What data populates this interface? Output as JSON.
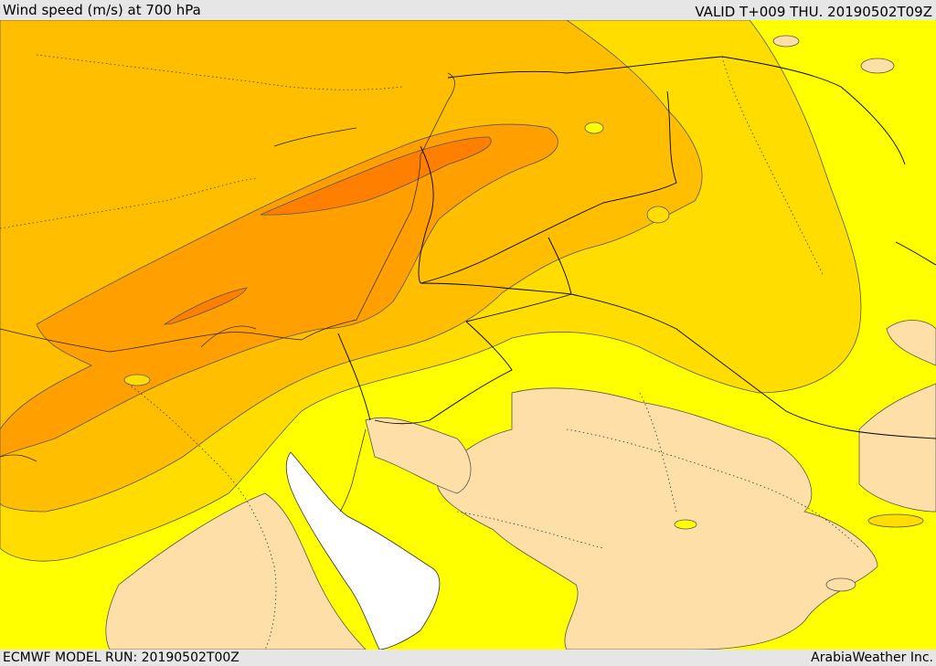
{
  "header": {
    "title": "Wind speed (m/s) at 700 hPa",
    "valid": "VALID T+009 THU. 20190502T09Z"
  },
  "footer": {
    "model_run": "ECMWF MODEL RUN: 20190502T00Z",
    "credit": "ArabiaWeather Inc."
  },
  "map": {
    "field": "wind speed 700 hPa",
    "colors": {
      "sea_blank": "#ffffff",
      "level_0": "#ffdfa8",
      "level_1": "#ffff00",
      "level_2": "#ffdd00",
      "level_3": "#ffbf00",
      "level_4": "#ff9f00",
      "level_5": "#ff7f00",
      "border": "#000000"
    }
  }
}
